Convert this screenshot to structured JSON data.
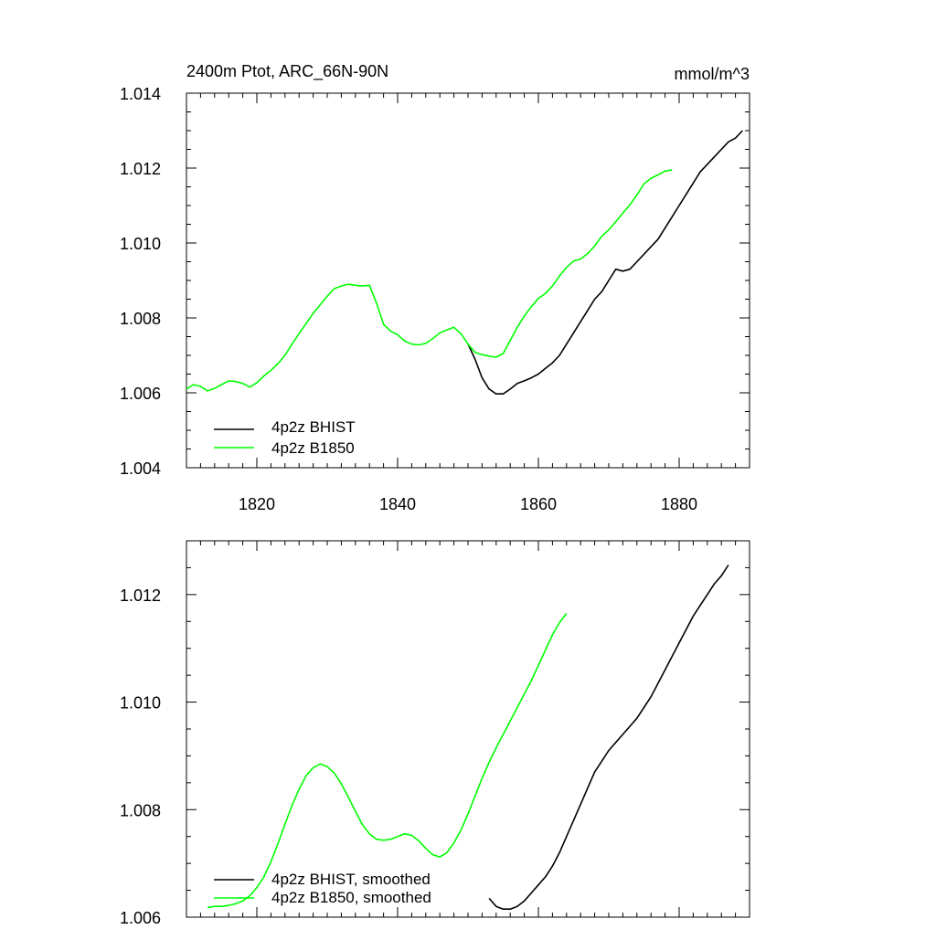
{
  "chart_data": [
    {
      "type": "line",
      "title": "2400m Ptot, ARC_66N-90N",
      "units": "mmol/m^3",
      "xlim": [
        1810,
        1890
      ],
      "ylim": [
        1.004,
        1.014
      ],
      "xticks": [
        1820,
        1840,
        1860,
        1880
      ],
      "xtick_labels": [
        "1820",
        "1840",
        "1860",
        "1880"
      ],
      "yticks": [
        1.004,
        1.006,
        1.008,
        1.01,
        1.012,
        1.014
      ],
      "ytick_labels": [
        "1.004",
        "1.006",
        "1.008",
        "1.010",
        "1.012",
        "1.014"
      ],
      "legend_position": "bottom-left",
      "series": [
        {
          "name": "4p2z BHIST",
          "color": "#000000",
          "points": [
            [
              1850,
              1.0073
            ],
            [
              1851,
              1.0069
            ],
            [
              1852,
              1.0064
            ],
            [
              1853,
              1.0061
            ],
            [
              1854,
              1.00597
            ],
            [
              1855,
              1.00597
            ],
            [
              1856,
              1.0061
            ],
            [
              1857,
              1.00625
            ],
            [
              1858,
              1.00632
            ],
            [
              1859,
              1.0064
            ],
            [
              1860,
              1.0065
            ],
            [
              1861,
              1.00665
            ],
            [
              1862,
              1.0068
            ],
            [
              1863,
              1.007
            ],
            [
              1864,
              1.0073
            ],
            [
              1865,
              1.0076
            ],
            [
              1866,
              1.0079
            ],
            [
              1867,
              1.0082
            ],
            [
              1868,
              1.0085
            ],
            [
              1869,
              1.0087
            ],
            [
              1870,
              1.009
            ],
            [
              1871,
              1.0093
            ],
            [
              1872,
              1.00925
            ],
            [
              1873,
              1.0093
            ],
            [
              1874,
              1.0095
            ],
            [
              1875,
              1.0097
            ],
            [
              1876,
              1.0099
            ],
            [
              1877,
              1.0101
            ],
            [
              1878,
              1.0104
            ],
            [
              1879,
              1.0107
            ],
            [
              1880,
              1.011
            ],
            [
              1881,
              1.0113
            ],
            [
              1882,
              1.0116
            ],
            [
              1883,
              1.0119
            ],
            [
              1884,
              1.0121
            ],
            [
              1885,
              1.0123
            ],
            [
              1886,
              1.0125
            ],
            [
              1887,
              1.0127
            ],
            [
              1888,
              1.0128
            ],
            [
              1889,
              1.013
            ]
          ]
        },
        {
          "name": "4p2z B1850",
          "color": "#00ff00",
          "points": [
            [
              1810,
              1.0061
            ],
            [
              1811,
              1.00622
            ],
            [
              1812,
              1.00617
            ],
            [
              1813,
              1.00605
            ],
            [
              1814,
              1.00612
            ],
            [
              1815,
              1.00622
            ],
            [
              1816,
              1.00632
            ],
            [
              1817,
              1.0063
            ],
            [
              1818,
              1.00625
            ],
            [
              1819,
              1.00615
            ],
            [
              1820,
              1.00627
            ],
            [
              1821,
              1.00645
            ],
            [
              1822,
              1.0066
            ],
            [
              1823,
              1.00678
            ],
            [
              1824,
              1.007
            ],
            [
              1825,
              1.0073
            ],
            [
              1826,
              1.00758
            ],
            [
              1827,
              1.00785
            ],
            [
              1828,
              1.00812
            ],
            [
              1829,
              1.00835
            ],
            [
              1830,
              1.00858
            ],
            [
              1831,
              1.00878
            ],
            [
              1832,
              1.00885
            ],
            [
              1833,
              1.0089
            ],
            [
              1834,
              1.00887
            ],
            [
              1835,
              1.00885
            ],
            [
              1836,
              1.00887
            ],
            [
              1837,
              1.0084
            ],
            [
              1838,
              1.00783
            ],
            [
              1839,
              1.00765
            ],
            [
              1840,
              1.00755
            ],
            [
              1841,
              1.00738
            ],
            [
              1842,
              1.0073
            ],
            [
              1843,
              1.00728
            ],
            [
              1844,
              1.00732
            ],
            [
              1845,
              1.00745
            ],
            [
              1846,
              1.0076
            ],
            [
              1847,
              1.00768
            ],
            [
              1848,
              1.00775
            ],
            [
              1849,
              1.00758
            ],
            [
              1850,
              1.0073
            ],
            [
              1851,
              1.00708
            ],
            [
              1852,
              1.00702
            ],
            [
              1853,
              1.00698
            ],
            [
              1854,
              1.00695
            ],
            [
              1855,
              1.00705
            ],
            [
              1856,
              1.0074
            ],
            [
              1857,
              1.00775
            ],
            [
              1858,
              1.00805
            ],
            [
              1859,
              1.0083
            ],
            [
              1860,
              1.00852
            ],
            [
              1861,
              1.00865
            ],
            [
              1862,
              1.00885
            ],
            [
              1863,
              1.00912
            ],
            [
              1864,
              1.00935
            ],
            [
              1865,
              1.00952
            ],
            [
              1866,
              1.00957
            ],
            [
              1867,
              1.00972
            ],
            [
              1868,
              1.00992
            ],
            [
              1869,
              1.01018
            ],
            [
              1870,
              1.01035
            ],
            [
              1871,
              1.01057
            ],
            [
              1872,
              1.0108
            ],
            [
              1873,
              1.01102
            ],
            [
              1874,
              1.01128
            ],
            [
              1875,
              1.01158
            ],
            [
              1876,
              1.01173
            ],
            [
              1877,
              1.01182
            ],
            [
              1878,
              1.01192
            ],
            [
              1879,
              1.01195
            ]
          ]
        }
      ]
    },
    {
      "type": "line",
      "title": "",
      "xlim": [
        1810,
        1890
      ],
      "ylim": [
        1.006,
        1.013
      ],
      "xticks": [
        1820,
        1840,
        1860,
        1880
      ],
      "yticks": [
        1.006,
        1.008,
        1.01,
        1.012
      ],
      "ytick_labels": [
        "1.006",
        "1.008",
        "1.010",
        "1.012"
      ],
      "legend_position": "bottom-left",
      "series": [
        {
          "name": "4p2z BHIST, smoothed",
          "color": "#000000",
          "points": [
            [
              1853,
              1.00635
            ],
            [
              1854,
              1.0062
            ],
            [
              1855,
              1.00615
            ],
            [
              1856,
              1.00615
            ],
            [
              1857,
              1.0062
            ],
            [
              1858,
              1.0063
            ],
            [
              1859,
              1.00645
            ],
            [
              1860,
              1.0066
            ],
            [
              1861,
              1.00675
            ],
            [
              1862,
              1.00695
            ],
            [
              1863,
              1.0072
            ],
            [
              1864,
              1.0075
            ],
            [
              1865,
              1.0078
            ],
            [
              1866,
              1.0081
            ],
            [
              1867,
              1.0084
            ],
            [
              1868,
              1.0087
            ],
            [
              1869,
              1.0089
            ],
            [
              1870,
              1.0091
            ],
            [
              1871,
              1.00925
            ],
            [
              1872,
              1.0094
            ],
            [
              1873,
              1.00955
            ],
            [
              1874,
              1.0097
            ],
            [
              1875,
              1.0099
            ],
            [
              1876,
              1.0101
            ],
            [
              1877,
              1.01035
            ],
            [
              1878,
              1.0106
            ],
            [
              1879,
              1.01085
            ],
            [
              1880,
              1.0111
            ],
            [
              1881,
              1.01135
            ],
            [
              1882,
              1.0116
            ],
            [
              1883,
              1.0118
            ],
            [
              1884,
              1.012
            ],
            [
              1885,
              1.0122
            ],
            [
              1886,
              1.01235
            ],
            [
              1887,
              1.01255
            ]
          ]
        },
        {
          "name": "4p2z B1850, smoothed",
          "color": "#00ff00",
          "points": [
            [
              1813,
              1.00618
            ],
            [
              1814,
              1.0062
            ],
            [
              1815,
              1.0062
            ],
            [
              1816,
              1.00622
            ],
            [
              1817,
              1.00625
            ],
            [
              1818,
              1.0063
            ],
            [
              1819,
              1.0064
            ],
            [
              1820,
              1.00655
            ],
            [
              1821,
              1.00675
            ],
            [
              1822,
              1.00703
            ],
            [
              1823,
              1.00737
            ],
            [
              1824,
              1.00773
            ],
            [
              1825,
              1.00808
            ],
            [
              1826,
              1.00838
            ],
            [
              1827,
              1.00863
            ],
            [
              1828,
              1.00878
            ],
            [
              1829,
              1.00885
            ],
            [
              1830,
              1.0088
            ],
            [
              1831,
              1.00868
            ],
            [
              1832,
              1.00848
            ],
            [
              1833,
              1.00823
            ],
            [
              1834,
              1.00797
            ],
            [
              1835,
              1.00772
            ],
            [
              1836,
              1.00755
            ],
            [
              1837,
              1.00745
            ],
            [
              1838,
              1.00743
            ],
            [
              1839,
              1.00745
            ],
            [
              1840,
              1.0075
            ],
            [
              1841,
              1.00755
            ],
            [
              1842,
              1.00752
            ],
            [
              1843,
              1.00742
            ],
            [
              1844,
              1.00728
            ],
            [
              1845,
              1.00716
            ],
            [
              1846,
              1.00712
            ],
            [
              1847,
              1.0072
            ],
            [
              1848,
              1.00738
            ],
            [
              1849,
              1.00762
            ],
            [
              1850,
              1.00792
            ],
            [
              1851,
              1.00825
            ],
            [
              1852,
              1.00858
            ],
            [
              1853,
              1.00888
            ],
            [
              1854,
              1.00915
            ],
            [
              1855,
              1.0094
            ],
            [
              1856,
              1.00965
            ],
            [
              1857,
              1.0099
            ],
            [
              1858,
              1.01015
            ],
            [
              1859,
              1.0104
            ],
            [
              1860,
              1.01068
            ],
            [
              1861,
              1.01097
            ],
            [
              1862,
              1.01125
            ],
            [
              1863,
              1.01148
            ],
            [
              1864,
              1.01165
            ]
          ]
        }
      ]
    }
  ]
}
